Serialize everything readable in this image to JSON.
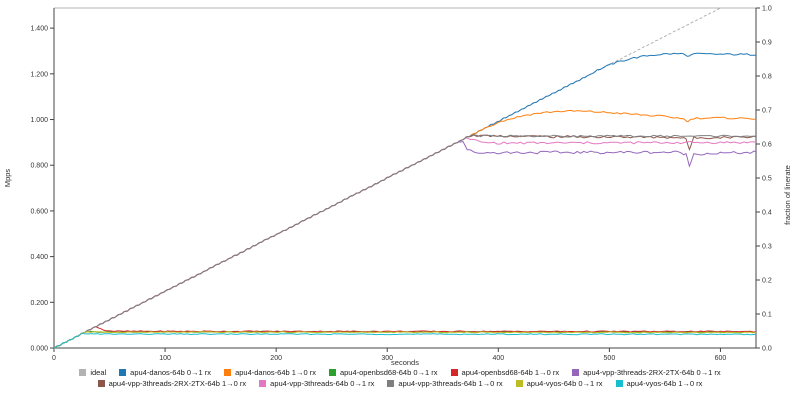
{
  "chart_data": {
    "type": "line",
    "title": "",
    "xlabel": "seconds",
    "ylabel_left": "Mpps",
    "ylabel_right": "fraction of linerate",
    "xlim": [
      0,
      632
    ],
    "ylim_left": [
      0,
      1.4881
    ],
    "ylim_right": [
      0,
      1.0
    ],
    "x_ticks": [
      "0",
      "100",
      "200",
      "300",
      "400",
      "500",
      "600"
    ],
    "y_ticks_left": [
      "0.000",
      "0.200",
      "0.400",
      "0.600",
      "0.800",
      "1.000",
      "1.200",
      "1.400"
    ],
    "y_ticks_right": [
      "0.0",
      "0.1",
      "0.2",
      "0.3",
      "0.4",
      "0.5",
      "0.6",
      "0.7",
      "0.8",
      "0.9",
      "1.0"
    ],
    "grid": false,
    "legend_position": "bottom",
    "legend_rows": [
      6,
      5
    ],
    "linerate_mpps": 1.4881,
    "ramp_end_s": 600,
    "series": [
      {
        "name": "ideal",
        "color": "#b3b3b3",
        "dash": true,
        "noise": 0.0,
        "sat_t": 600,
        "points": [
          [
            632,
            1.4881
          ]
        ]
      },
      {
        "name": "apu4-danos-64b 0→1 rx",
        "color": "#1f77b4",
        "dash": false,
        "noise": 0.004,
        "sat_t": 477,
        "points": [
          [
            490,
            1.218
          ],
          [
            505,
            1.248
          ],
          [
            520,
            1.268
          ],
          [
            535,
            1.28
          ],
          [
            550,
            1.287
          ],
          [
            565,
            1.288
          ],
          [
            572,
            1.278
          ],
          [
            576,
            1.287
          ],
          [
            632,
            1.284
          ]
        ]
      },
      {
        "name": "apu4-danos-64b 1→0 rx",
        "color": "#ff7f0e",
        "dash": false,
        "noise": 0.004,
        "sat_t": 391,
        "points": [
          [
            400,
            0.988
          ],
          [
            410,
            1.002
          ],
          [
            425,
            1.02
          ],
          [
            440,
            1.03
          ],
          [
            455,
            1.036
          ],
          [
            470,
            1.037
          ],
          [
            490,
            1.033
          ],
          [
            510,
            1.027
          ],
          [
            530,
            1.02
          ],
          [
            550,
            1.013
          ],
          [
            565,
            1.005
          ],
          [
            571,
            0.993
          ],
          [
            576,
            1.006
          ],
          [
            600,
            1.007
          ],
          [
            632,
            1.004
          ]
        ]
      },
      {
        "name": "apu4-openbsd68-64b 0→1 rx",
        "color": "#2ca02c",
        "dash": false,
        "noise": 0.0025,
        "sat_t": 29,
        "points": [
          [
            35,
            0.071
          ],
          [
            632,
            0.07
          ]
        ]
      },
      {
        "name": "apu4-openbsd68-64b 1→0 rx",
        "color": "#d62728",
        "dash": false,
        "noise": 0.0025,
        "sat_t": 38,
        "points": [
          [
            45,
            0.078
          ],
          [
            55,
            0.073
          ],
          [
            632,
            0.072
          ]
        ]
      },
      {
        "name": "apu4-vpp-3threads-2RX-2TX-64b 0→1 rx",
        "color": "#9467bd",
        "dash": false,
        "noise": 0.006,
        "sat_t": 364,
        "points": [
          [
            368,
            0.905
          ],
          [
            372,
            0.87
          ],
          [
            378,
            0.855
          ],
          [
            450,
            0.856
          ],
          [
            560,
            0.857
          ],
          [
            569,
            0.85
          ],
          [
            572,
            0.795
          ],
          [
            576,
            0.85
          ],
          [
            632,
            0.856
          ]
        ]
      },
      {
        "name": "apu4-vpp-3threads-2RX-2TX-64b 1→0 rx",
        "color": "#8c564b",
        "dash": false,
        "noise": 0.005,
        "sat_t": 374,
        "points": [
          [
            380,
            0.93
          ],
          [
            450,
            0.925
          ],
          [
            560,
            0.922
          ],
          [
            569,
            0.915
          ],
          [
            572,
            0.87
          ],
          [
            576,
            0.92
          ],
          [
            632,
            0.925
          ]
        ]
      },
      {
        "name": "apu4-vpp-3threads-64b 0→1 rx",
        "color": "#e377c2",
        "dash": false,
        "noise": 0.005,
        "sat_t": 369,
        "points": [
          [
            375,
            0.915
          ],
          [
            385,
            0.9
          ],
          [
            400,
            0.897
          ],
          [
            500,
            0.898
          ],
          [
            632,
            0.9
          ]
        ]
      },
      {
        "name": "apu4-vpp-3threads-64b 1→0 rx",
        "color": "#7f7f7f",
        "dash": false,
        "noise": 0.004,
        "sat_t": 375,
        "points": [
          [
            385,
            0.928
          ],
          [
            500,
            0.927
          ],
          [
            632,
            0.928
          ]
        ]
      },
      {
        "name": "apu4-vyos-64b 0→1 rx",
        "color": "#bcbd22",
        "dash": false,
        "noise": 0.002,
        "sat_t": 28,
        "points": [
          [
            632,
            0.068
          ]
        ]
      },
      {
        "name": "apu4-vyos-64b 1→0 rx",
        "color": "#17becf",
        "dash": false,
        "noise": 0.002,
        "sat_t": 26,
        "points": [
          [
            32,
            0.061
          ],
          [
            632,
            0.06
          ]
        ]
      }
    ]
  }
}
